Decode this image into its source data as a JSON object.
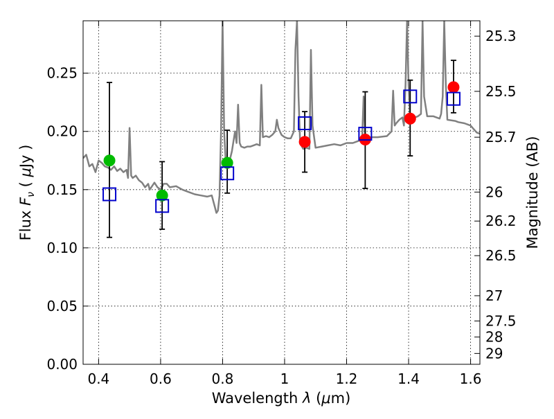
{
  "chart_data": {
    "type": "scatter",
    "title": "",
    "xlabel": "Wavelength  λ (μm)",
    "ylabel": "Flux  F_ν  ( μJy )",
    "ylabel_parts": [
      "Flux  ",
      "F",
      "ν",
      "  ( ",
      "μ",
      "Jy )"
    ],
    "xlabel_parts": [
      "Wavelength  ",
      "λ",
      " (",
      "μ",
      "m)"
    ],
    "y2label": "Magnitude (AB)",
    "xlim": [
      0.35,
      1.63
    ],
    "ylim": [
      0.0,
      0.295
    ],
    "grid": true,
    "x_ticks": [
      0.4,
      0.6,
      0.8,
      1.0,
      1.2,
      1.4,
      1.6
    ],
    "x_tick_labels": [
      "0.4",
      "0.6",
      "0.8",
      "1",
      "1.2",
      "1.4",
      "1.6"
    ],
    "y_ticks": [
      0.0,
      0.05,
      0.1,
      0.15,
      0.2,
      0.25
    ],
    "y_tick_labels": [
      "0.00",
      "0.05",
      "0.10",
      "0.15",
      "0.20",
      "0.25"
    ],
    "y2_ticks": [
      {
        "label": "25.3",
        "flux": 0.2818
      },
      {
        "label": "25.5",
        "flux": 0.2344
      },
      {
        "label": "25.7",
        "flux": 0.195
      },
      {
        "label": "26",
        "flux": 0.1479
      },
      {
        "label": "26.2",
        "flux": 0.123
      },
      {
        "label": "26.5",
        "flux": 0.0933
      },
      {
        "label": "27",
        "flux": 0.0589
      },
      {
        "label": "27.5",
        "flux": 0.0372
      },
      {
        "label": "28",
        "flux": 0.0234
      },
      {
        "label": "29",
        "flux": 0.0093
      }
    ],
    "colors": {
      "model": "#808080",
      "green": "#00bb00",
      "red": "#ff0000",
      "box": "#0000cc",
      "errorbar": "#000000"
    },
    "series": [
      {
        "name": "model SED",
        "kind": "line",
        "points": [
          [
            0.35,
            0.177
          ],
          [
            0.36,
            0.18
          ],
          [
            0.37,
            0.17
          ],
          [
            0.38,
            0.172
          ],
          [
            0.39,
            0.165
          ],
          [
            0.4,
            0.175
          ],
          [
            0.41,
            0.173
          ],
          [
            0.42,
            0.17
          ],
          [
            0.43,
            0.169
          ],
          [
            0.44,
            0.167
          ],
          [
            0.45,
            0.17
          ],
          [
            0.46,
            0.166
          ],
          [
            0.47,
            0.168
          ],
          [
            0.48,
            0.165
          ],
          [
            0.49,
            0.167
          ],
          [
            0.495,
            0.16
          ],
          [
            0.5,
            0.203
          ],
          [
            0.505,
            0.162
          ],
          [
            0.51,
            0.16
          ],
          [
            0.52,
            0.162
          ],
          [
            0.53,
            0.158
          ],
          [
            0.54,
            0.156
          ],
          [
            0.55,
            0.152
          ],
          [
            0.56,
            0.155
          ],
          [
            0.565,
            0.15
          ],
          [
            0.57,
            0.152
          ],
          [
            0.58,
            0.156
          ],
          [
            0.59,
            0.152
          ],
          [
            0.6,
            0.15
          ],
          [
            0.61,
            0.155
          ],
          [
            0.62,
            0.155
          ],
          [
            0.63,
            0.152
          ],
          [
            0.65,
            0.153
          ],
          [
            0.67,
            0.15
          ],
          [
            0.69,
            0.148
          ],
          [
            0.71,
            0.146
          ],
          [
            0.73,
            0.145
          ],
          [
            0.75,
            0.144
          ],
          [
            0.765,
            0.145
          ],
          [
            0.775,
            0.135
          ],
          [
            0.78,
            0.13
          ],
          [
            0.785,
            0.132
          ],
          [
            0.79,
            0.145
          ],
          [
            0.795,
            0.2
          ],
          [
            0.8,
            0.295
          ],
          [
            0.805,
            0.2
          ],
          [
            0.81,
            0.175
          ],
          [
            0.82,
            0.172
          ],
          [
            0.83,
            0.183
          ],
          [
            0.84,
            0.2
          ],
          [
            0.845,
            0.19
          ],
          [
            0.85,
            0.223
          ],
          [
            0.855,
            0.19
          ],
          [
            0.86,
            0.187
          ],
          [
            0.87,
            0.186
          ],
          [
            0.88,
            0.187
          ],
          [
            0.89,
            0.187
          ],
          [
            0.9,
            0.188
          ],
          [
            0.91,
            0.189
          ],
          [
            0.92,
            0.188
          ],
          [
            0.925,
            0.24
          ],
          [
            0.93,
            0.195
          ],
          [
            0.94,
            0.196
          ],
          [
            0.95,
            0.195
          ],
          [
            0.96,
            0.197
          ],
          [
            0.97,
            0.2
          ],
          [
            0.975,
            0.21
          ],
          [
            0.98,
            0.203
          ],
          [
            0.99,
            0.197
          ],
          [
            1.0,
            0.195
          ],
          [
            1.01,
            0.194
          ],
          [
            1.02,
            0.194
          ],
          [
            1.03,
            0.2
          ],
          [
            1.035,
            0.27
          ],
          [
            1.04,
            0.295
          ],
          [
            1.045,
            0.23
          ],
          [
            1.05,
            0.19
          ],
          [
            1.06,
            0.185
          ],
          [
            1.07,
            0.186
          ],
          [
            1.08,
            0.185
          ],
          [
            1.085,
            0.27
          ],
          [
            1.09,
            0.205
          ],
          [
            1.1,
            0.186
          ],
          [
            1.12,
            0.187
          ],
          [
            1.14,
            0.188
          ],
          [
            1.16,
            0.189
          ],
          [
            1.18,
            0.188
          ],
          [
            1.2,
            0.19
          ],
          [
            1.22,
            0.19
          ],
          [
            1.24,
            0.192
          ],
          [
            1.25,
            0.193
          ],
          [
            1.255,
            0.23
          ],
          [
            1.26,
            0.194
          ],
          [
            1.27,
            0.195
          ],
          [
            1.3,
            0.195
          ],
          [
            1.33,
            0.196
          ],
          [
            1.345,
            0.2
          ],
          [
            1.35,
            0.235
          ],
          [
            1.355,
            0.205
          ],
          [
            1.36,
            0.207
          ],
          [
            1.37,
            0.21
          ],
          [
            1.38,
            0.212
          ],
          [
            1.385,
            0.205
          ],
          [
            1.39,
            0.24
          ],
          [
            1.395,
            0.295
          ],
          [
            1.4,
            0.24
          ],
          [
            1.405,
            0.21
          ],
          [
            1.41,
            0.21
          ],
          [
            1.42,
            0.212
          ],
          [
            1.43,
            0.213
          ],
          [
            1.44,
            0.215
          ],
          [
            1.445,
            0.295
          ],
          [
            1.45,
            0.23
          ],
          [
            1.46,
            0.213
          ],
          [
            1.48,
            0.213
          ],
          [
            1.49,
            0.212
          ],
          [
            1.5,
            0.211
          ],
          [
            1.505,
            0.215
          ],
          [
            1.51,
            0.23
          ],
          [
            1.515,
            0.295
          ],
          [
            1.52,
            0.24
          ],
          [
            1.525,
            0.21
          ],
          [
            1.55,
            0.209
          ],
          [
            1.56,
            0.208
          ],
          [
            1.58,
            0.207
          ],
          [
            1.6,
            0.205
          ],
          [
            1.61,
            0.202
          ],
          [
            1.62,
            0.199
          ],
          [
            1.63,
            0.198
          ]
        ]
      },
      {
        "name": "green points",
        "kind": "circle",
        "color_key": "green",
        "points": [
          [
            0.435,
            0.175
          ],
          [
            0.605,
            0.145
          ],
          [
            0.815,
            0.173
          ]
        ]
      },
      {
        "name": "red points",
        "kind": "circle",
        "color_key": "red",
        "points": [
          [
            1.065,
            0.191
          ],
          [
            1.26,
            0.193
          ],
          [
            1.405,
            0.211
          ],
          [
            1.545,
            0.238
          ]
        ]
      },
      {
        "name": "model photometry",
        "kind": "square",
        "color_key": "box",
        "points": [
          [
            0.435,
            0.146
          ],
          [
            0.605,
            0.136
          ],
          [
            0.815,
            0.164
          ],
          [
            1.065,
            0.207
          ],
          [
            1.26,
            0.198
          ],
          [
            1.405,
            0.23
          ],
          [
            1.545,
            0.228
          ]
        ]
      }
    ],
    "error_bars": [
      {
        "x": 0.435,
        "low": 0.109,
        "high": 0.242
      },
      {
        "x": 0.605,
        "low": 0.116,
        "high": 0.174
      },
      {
        "x": 0.815,
        "low": 0.147,
        "high": 0.201
      },
      {
        "x": 1.065,
        "low": 0.165,
        "high": 0.217
      },
      {
        "x": 1.26,
        "low": 0.151,
        "high": 0.234
      },
      {
        "x": 1.405,
        "low": 0.179,
        "high": 0.244
      },
      {
        "x": 1.545,
        "low": 0.216,
        "high": 0.261
      }
    ]
  }
}
